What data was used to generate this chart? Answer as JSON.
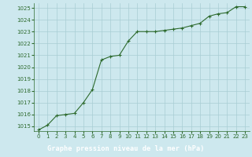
{
  "x": [
    0,
    1,
    2,
    3,
    4,
    5,
    6,
    7,
    8,
    9,
    10,
    11,
    12,
    13,
    14,
    15,
    16,
    17,
    18,
    19,
    20,
    21,
    22,
    23
  ],
  "y": [
    1014.7,
    1015.1,
    1015.9,
    1016.0,
    1016.1,
    1017.0,
    1018.1,
    1020.6,
    1020.9,
    1021.0,
    1022.2,
    1023.0,
    1023.0,
    1023.0,
    1023.1,
    1023.2,
    1023.3,
    1023.5,
    1023.7,
    1024.3,
    1024.5,
    1024.6,
    1025.1,
    1025.1
  ],
  "ylim_min": 1014.6,
  "ylim_max": 1025.4,
  "yticks": [
    1015,
    1016,
    1017,
    1018,
    1019,
    1020,
    1021,
    1022,
    1023,
    1024,
    1025
  ],
  "xticks": [
    0,
    1,
    2,
    3,
    4,
    5,
    6,
    7,
    8,
    9,
    10,
    11,
    12,
    13,
    14,
    15,
    16,
    17,
    18,
    19,
    20,
    21,
    22,
    23
  ],
  "line_color": "#2d6a2d",
  "marker_color": "#2d6a2d",
  "bg_color": "#cde8ee",
  "grid_color": "#a8cdd4",
  "bottom_bar_color": "#2d6a2d",
  "tick_color": "#2d6a2d",
  "tick_fontsize": 5.0,
  "label_fontsize": 6.2,
  "xlabel": "Graphe pression niveau de la mer (hPa)"
}
